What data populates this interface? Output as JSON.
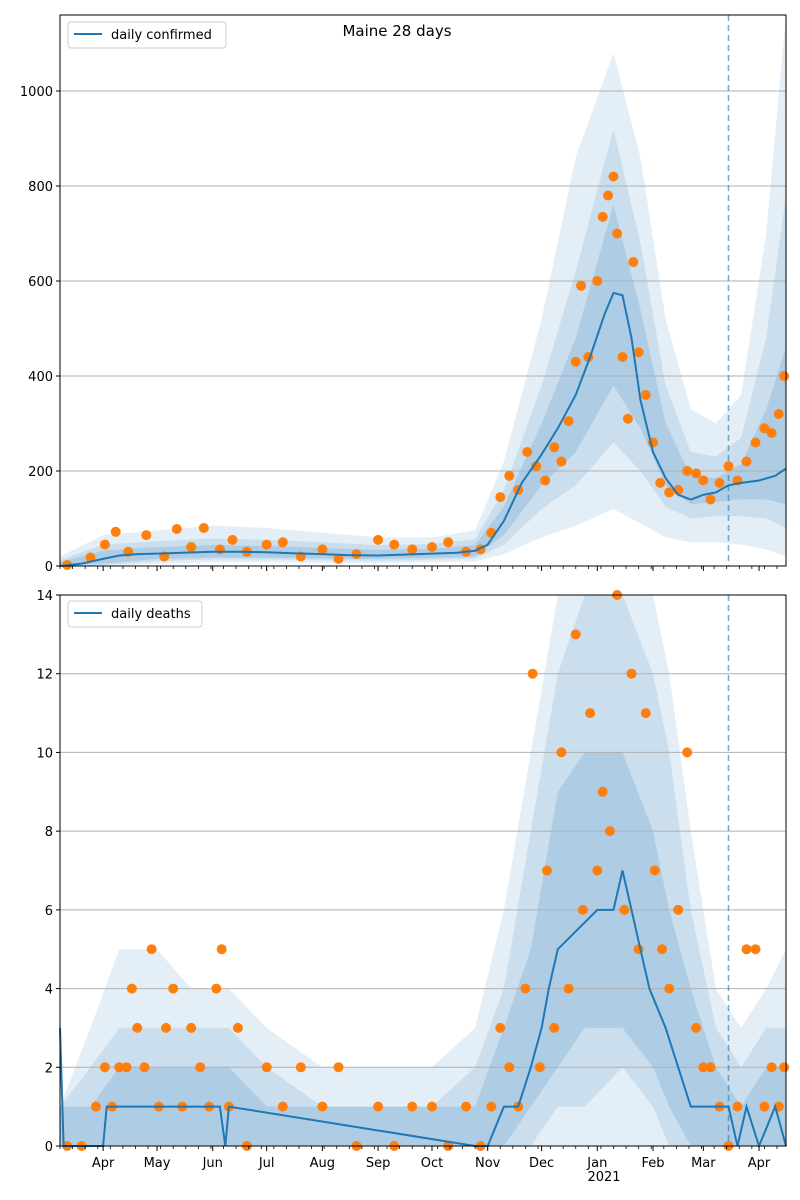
{
  "figure": {
    "title": "Maine 28 days"
  },
  "colors": {
    "line": "#1f77b4",
    "points": "#ff7f0e",
    "band": "#1f77b4",
    "grid": "#b0b0b0",
    "cutoff": "#1f77b4"
  },
  "chart_data": [
    {
      "type": "line",
      "title": "Maine 28 days",
      "legend": "daily confirmed",
      "legend_position": "top-left",
      "grid": "horizontal",
      "ylim": [
        0,
        1160
      ],
      "yticks": [
        0,
        200,
        400,
        600,
        800,
        1000
      ],
      "xlim": [
        "2020-03-08",
        "2021-04-16"
      ],
      "cutoff_date": "2021-03-15",
      "line_series": {
        "name": "daily confirmed",
        "x": [
          "2020-03-08",
          "2020-03-20",
          "2020-04-01",
          "2020-04-10",
          "2020-04-20",
          "2020-05-01",
          "2020-05-15",
          "2020-06-01",
          "2020-06-15",
          "2020-07-01",
          "2020-07-15",
          "2020-08-01",
          "2020-08-15",
          "2020-09-01",
          "2020-09-15",
          "2020-10-01",
          "2020-10-15",
          "2020-10-25",
          "2020-11-01",
          "2020-11-10",
          "2020-11-20",
          "2020-12-01",
          "2020-12-10",
          "2020-12-20",
          "2020-12-28",
          "2021-01-05",
          "2021-01-10",
          "2021-01-15",
          "2021-01-20",
          "2021-01-25",
          "2021-02-01",
          "2021-02-08",
          "2021-02-15",
          "2021-02-22",
          "2021-03-01",
          "2021-03-08",
          "2021-03-15",
          "2021-03-22",
          "2021-04-01",
          "2021-04-10",
          "2021-04-16"
        ],
        "y": [
          0,
          5,
          15,
          22,
          25,
          26,
          28,
          30,
          30,
          29,
          27,
          25,
          23,
          22,
          24,
          26,
          28,
          32,
          45,
          95,
          175,
          235,
          290,
          360,
          440,
          530,
          575,
          570,
          480,
          350,
          240,
          185,
          150,
          140,
          150,
          155,
          170,
          175,
          180,
          190,
          205
        ]
      },
      "bands": [
        {
          "name": "outer",
          "x": [
            "2020-03-08",
            "2020-04-01",
            "2020-05-01",
            "2020-06-01",
            "2020-07-01",
            "2020-08-01",
            "2020-09-01",
            "2020-10-01",
            "2020-10-25",
            "2020-11-10",
            "2020-12-01",
            "2020-12-20",
            "2021-01-10",
            "2021-01-25",
            "2021-02-08",
            "2021-02-22",
            "2021-03-08",
            "2021-03-22",
            "2021-04-05",
            "2021-04-16"
          ],
          "lower": [
            0,
            0,
            5,
            8,
            8,
            7,
            6,
            8,
            10,
            25,
            60,
            85,
            120,
            90,
            60,
            50,
            50,
            45,
            35,
            20
          ],
          "upper": [
            20,
            65,
            75,
            85,
            80,
            70,
            60,
            60,
            75,
            220,
            520,
            860,
            1080,
            860,
            520,
            330,
            300,
            360,
            700,
            1160
          ]
        },
        {
          "name": "middle",
          "x": [
            "2020-03-08",
            "2020-04-01",
            "2020-05-01",
            "2020-06-01",
            "2020-07-01",
            "2020-08-01",
            "2020-09-01",
            "2020-10-01",
            "2020-10-25",
            "2020-11-10",
            "2020-12-01",
            "2020-12-20",
            "2021-01-10",
            "2021-01-25",
            "2021-02-08",
            "2021-02-22",
            "2021-03-08",
            "2021-03-22",
            "2021-04-05",
            "2021-04-16"
          ],
          "lower": [
            0,
            2,
            10,
            14,
            14,
            12,
            11,
            13,
            16,
            45,
            120,
            170,
            260,
            200,
            125,
            100,
            105,
            105,
            100,
            80
          ],
          "upper": [
            12,
            45,
            52,
            58,
            55,
            50,
            44,
            46,
            56,
            160,
            380,
            620,
            920,
            680,
            380,
            240,
            230,
            270,
            480,
            780
          ]
        },
        {
          "name": "inner",
          "x": [
            "2020-03-08",
            "2020-04-01",
            "2020-05-01",
            "2020-06-01",
            "2020-07-01",
            "2020-08-01",
            "2020-09-01",
            "2020-10-01",
            "2020-10-25",
            "2020-11-10",
            "2020-12-01",
            "2020-12-20",
            "2021-01-10",
            "2021-01-25",
            "2021-02-08",
            "2021-02-22",
            "2021-03-08",
            "2021-03-22",
            "2021-04-05",
            "2021-04-16"
          ],
          "lower": [
            0,
            5,
            15,
            18,
            18,
            16,
            15,
            17,
            20,
            65,
            170,
            240,
            380,
            290,
            170,
            130,
            135,
            140,
            140,
            130
          ],
          "upper": [
            8,
            32,
            40,
            44,
            42,
            38,
            34,
            36,
            44,
            125,
            300,
            480,
            760,
            540,
            300,
            190,
            185,
            215,
            330,
            460
          ]
        }
      ],
      "points": {
        "name": "observed",
        "x": [
          "2020-03-12",
          "2020-03-25",
          "2020-04-02",
          "2020-04-08",
          "2020-04-15",
          "2020-04-25",
          "2020-05-05",
          "2020-05-12",
          "2020-05-20",
          "2020-05-27",
          "2020-06-05",
          "2020-06-12",
          "2020-06-20",
          "2020-07-01",
          "2020-07-10",
          "2020-07-20",
          "2020-08-01",
          "2020-08-10",
          "2020-08-20",
          "2020-09-01",
          "2020-09-10",
          "2020-09-20",
          "2020-10-01",
          "2020-10-10",
          "2020-10-20",
          "2020-10-28",
          "2020-11-03",
          "2020-11-08",
          "2020-11-13",
          "2020-11-18",
          "2020-11-23",
          "2020-11-28",
          "2020-12-03",
          "2020-12-08",
          "2020-12-12",
          "2020-12-16",
          "2020-12-20",
          "2020-12-23",
          "2020-12-27",
          "2021-01-01",
          "2021-01-04",
          "2021-01-07",
          "2021-01-10",
          "2021-01-12",
          "2021-01-15",
          "2021-01-18",
          "2021-01-21",
          "2021-01-24",
          "2021-01-28",
          "2021-02-01",
          "2021-02-05",
          "2021-02-10",
          "2021-02-15",
          "2021-02-20",
          "2021-02-25",
          "2021-03-01",
          "2021-03-05",
          "2021-03-10",
          "2021-03-15",
          "2021-03-20",
          "2021-03-25",
          "2021-03-30",
          "2021-04-04",
          "2021-04-08",
          "2021-04-12",
          "2021-04-15"
        ],
        "y": [
          2,
          18,
          45,
          72,
          30,
          65,
          20,
          78,
          40,
          80,
          35,
          55,
          30,
          45,
          50,
          20,
          35,
          15,
          25,
          55,
          45,
          35,
          40,
          50,
          30,
          35,
          70,
          145,
          190,
          160,
          240,
          210,
          180,
          250,
          220,
          305,
          430,
          590,
          440,
          600,
          735,
          780,
          820,
          700,
          440,
          310,
          640,
          450,
          360,
          260,
          175,
          155,
          160,
          200,
          195,
          180,
          140,
          175,
          210,
          180,
          220,
          260,
          290,
          280,
          320,
          400
        ]
      }
    },
    {
      "type": "line",
      "legend": "daily deaths",
      "legend_position": "top-left",
      "grid": "horizontal",
      "ylim": [
        0,
        14
      ],
      "yticks": [
        0,
        2,
        4,
        6,
        8,
        10,
        12,
        14
      ],
      "xlim": [
        "2020-03-08",
        "2021-04-16"
      ],
      "cutoff_date": "2021-03-15",
      "xtick_labels": [
        "Apr",
        "May",
        "Jun",
        "Jul",
        "Aug",
        "Sep",
        "Oct",
        "Nov",
        "Dec",
        "Jan",
        "Feb",
        "Mar",
        "Apr"
      ],
      "xtick_dates": [
        "2020-04-01",
        "2020-05-01",
        "2020-06-01",
        "2020-07-01",
        "2020-08-01",
        "2020-09-01",
        "2020-10-01",
        "2020-11-01",
        "2020-12-01",
        "2021-01-01",
        "2021-02-01",
        "2021-03-01",
        "2021-04-01"
      ],
      "xtick_year_label": "2021",
      "line_series": {
        "name": "daily deaths",
        "x": [
          "2020-03-08",
          "2020-03-10",
          "2020-03-15",
          "2020-04-01",
          "2020-04-03",
          "2020-05-15",
          "2020-05-25",
          "2020-06-05",
          "2020-06-08",
          "2020-06-10",
          "2020-10-25",
          "2020-11-01",
          "2020-11-10",
          "2020-11-18",
          "2020-11-25",
          "2020-12-01",
          "2020-12-05",
          "2020-12-10",
          "2021-01-01",
          "2021-01-10",
          "2021-01-15",
          "2021-01-20",
          "2021-01-25",
          "2021-01-30",
          "2021-02-08",
          "2021-02-15",
          "2021-02-22",
          "2021-03-01",
          "2021-03-08",
          "2021-03-15",
          "2021-03-20",
          "2021-03-25",
          "2021-04-01",
          "2021-04-10",
          "2021-04-16"
        ],
        "y": [
          3,
          0,
          0,
          0,
          1,
          1,
          1,
          1,
          0,
          1,
          0,
          0,
          1,
          1,
          2,
          3,
          4,
          5,
          6,
          6,
          7,
          6,
          5,
          4,
          3,
          2,
          1,
          1,
          1,
          1,
          0,
          1,
          0,
          1,
          0
        ]
      },
      "bands": [
        {
          "name": "outer",
          "x": [
            "2020-03-08",
            "2020-03-25",
            "2020-04-10",
            "2020-05-01",
            "2020-05-20",
            "2020-06-10",
            "2020-07-01",
            "2020-08-01",
            "2020-09-01",
            "2020-10-01",
            "2020-10-25",
            "2020-11-10",
            "2020-11-25",
            "2020-12-10",
            "2020-12-25",
            "2021-01-15",
            "2021-02-01",
            "2021-02-10",
            "2021-02-22",
            "2021-03-08",
            "2021-03-22",
            "2021-04-05",
            "2021-04-16"
          ],
          "lower": [
            0,
            0,
            0,
            0,
            0,
            0,
            0,
            0,
            0,
            0,
            0,
            0,
            0,
            0,
            0,
            0,
            0,
            0,
            0,
            0,
            0,
            0,
            0
          ],
          "upper": [
            1,
            3,
            5,
            5,
            4,
            4,
            3,
            2,
            2,
            2,
            3,
            6,
            10,
            14,
            14,
            14,
            14,
            12,
            8,
            4,
            3,
            4,
            5
          ]
        },
        {
          "name": "middle",
          "x": [
            "2020-03-08",
            "2020-03-25",
            "2020-04-10",
            "2020-05-01",
            "2020-05-20",
            "2020-06-10",
            "2020-07-01",
            "2020-08-01",
            "2020-09-01",
            "2020-10-01",
            "2020-10-25",
            "2020-11-10",
            "2020-11-25",
            "2020-12-10",
            "2020-12-25",
            "2021-01-15",
            "2021-02-01",
            "2021-02-10",
            "2021-02-22",
            "2021-03-08",
            "2021-03-22",
            "2021-04-05",
            "2021-04-16"
          ],
          "lower": [
            0,
            0,
            0,
            0,
            0,
            0,
            0,
            0,
            0,
            0,
            0,
            0,
            0,
            1,
            1,
            2,
            1,
            0,
            0,
            0,
            0,
            0,
            0
          ],
          "upper": [
            1,
            2,
            3,
            3,
            3,
            3,
            2,
            1,
            1,
            1,
            2,
            4,
            8,
            12,
            14,
            14,
            12,
            10,
            6,
            3,
            2,
            3,
            3
          ]
        },
        {
          "name": "inner",
          "x": [
            "2020-03-08",
            "2020-03-25",
            "2020-04-10",
            "2020-05-01",
            "2020-05-20",
            "2020-06-10",
            "2020-07-01",
            "2020-08-01",
            "2020-09-01",
            "2020-10-01",
            "2020-10-25",
            "2020-11-10",
            "2020-11-25",
            "2020-12-10",
            "2020-12-25",
            "2021-01-15",
            "2021-02-01",
            "2021-02-10",
            "2021-02-22",
            "2021-03-08",
            "2021-03-22",
            "2021-04-05",
            "2021-04-16"
          ],
          "lower": [
            0,
            0,
            0,
            0,
            0,
            0,
            0,
            0,
            0,
            0,
            0,
            0,
            1,
            2,
            3,
            3,
            2,
            1,
            0,
            0,
            0,
            0,
            0
          ],
          "upper": [
            1,
            1,
            2,
            2,
            2,
            2,
            1,
            1,
            1,
            1,
            1,
            3,
            5,
            9,
            10,
            10,
            8,
            6,
            4,
            2,
            1,
            2,
            2
          ]
        }
      ],
      "points": {
        "name": "observed",
        "x": [
          "2020-03-12",
          "2020-03-20",
          "2020-03-28",
          "2020-04-02",
          "2020-04-06",
          "2020-04-10",
          "2020-04-14",
          "2020-04-17",
          "2020-04-20",
          "2020-04-24",
          "2020-04-28",
          "2020-05-02",
          "2020-05-06",
          "2020-05-10",
          "2020-05-15",
          "2020-05-20",
          "2020-05-25",
          "2020-05-30",
          "2020-06-03",
          "2020-06-06",
          "2020-06-10",
          "2020-06-15",
          "2020-06-20",
          "2020-07-01",
          "2020-07-10",
          "2020-07-20",
          "2020-08-01",
          "2020-08-10",
          "2020-08-20",
          "2020-09-01",
          "2020-09-10",
          "2020-09-20",
          "2020-10-01",
          "2020-10-10",
          "2020-10-20",
          "2020-10-28",
          "2020-11-03",
          "2020-11-08",
          "2020-11-13",
          "2020-11-18",
          "2020-11-22",
          "2020-11-26",
          "2020-11-30",
          "2020-12-04",
          "2020-12-08",
          "2020-12-12",
          "2020-12-16",
          "2020-12-20",
          "2020-12-24",
          "2020-12-28",
          "2021-01-01",
          "2021-01-04",
          "2021-01-08",
          "2021-01-12",
          "2021-01-16",
          "2021-01-20",
          "2021-01-24",
          "2021-01-28",
          "2021-02-02",
          "2021-02-06",
          "2021-02-10",
          "2021-02-15",
          "2021-02-20",
          "2021-02-25",
          "2021-03-01",
          "2021-03-05",
          "2021-03-10",
          "2021-03-15",
          "2021-03-20",
          "2021-03-25",
          "2021-03-30",
          "2021-04-04",
          "2021-04-08",
          "2021-04-12",
          "2021-04-15"
        ],
        "y": [
          0,
          0,
          1,
          2,
          1,
          2,
          2,
          4,
          3,
          2,
          5,
          1,
          3,
          4,
          1,
          3,
          2,
          1,
          4,
          5,
          1,
          3,
          0,
          2,
          1,
          2,
          1,
          2,
          0,
          1,
          0,
          1,
          1,
          0,
          1,
          0,
          1,
          3,
          2,
          1,
          4,
          12,
          2,
          7,
          3,
          10,
          4,
          13,
          6,
          11,
          7,
          9,
          8,
          14,
          6,
          12,
          5,
          11,
          7,
          5,
          4,
          6,
          10,
          3,
          2,
          2,
          1,
          0,
          1,
          5,
          5,
          1,
          2,
          1,
          2
        ]
      }
    }
  ]
}
